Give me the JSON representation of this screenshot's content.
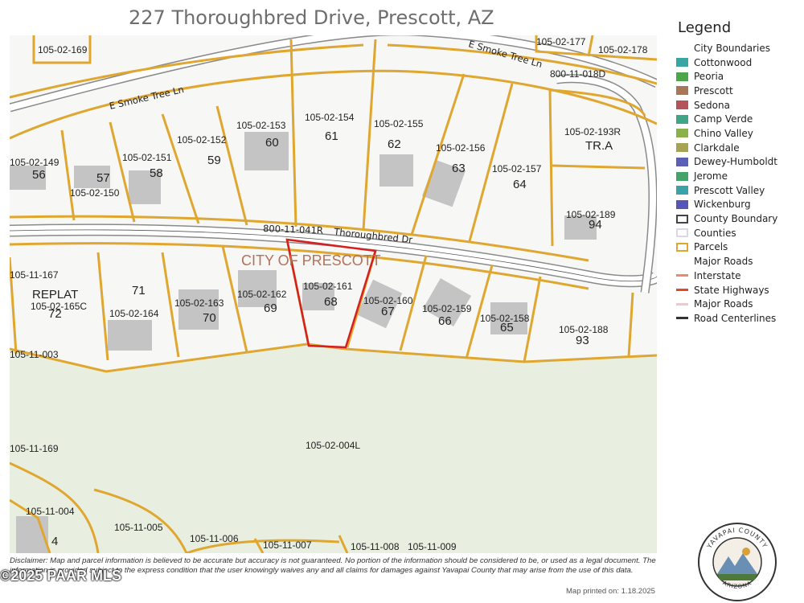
{
  "title": "227 Thoroughbred Drive, Prescott, AZ",
  "map": {
    "city_label": "CITY OF PRESCOTT",
    "roads": {
      "smoke_tree_left": "E Smoke Tree Ln",
      "smoke_tree_right": "E Smoke Tree Ln",
      "thoroughbred": "Thoroughbred Dr",
      "thoroughbred_id": "800-11-041R",
      "road_id_right": "800-11-018D"
    },
    "parcels": {
      "p169": "105-02-169",
      "p177": "105-02-177",
      "p178": "105-02-178",
      "p149": "105-02-149",
      "p150": "105-02-150",
      "p151": "105-02-151",
      "p152": "105-02-152",
      "p153": "105-02-153",
      "p154": "105-02-154",
      "p155": "105-02-155",
      "p156": "105-02-156",
      "p157": "105-02-157",
      "p193r": "105-02-193R",
      "p189": "105-02-189",
      "p11_167": "105-11-167",
      "p165c": "105-02-165C",
      "p164": "105-02-164",
      "p163": "105-02-163",
      "p162": "105-02-162",
      "p161": "105-02-161",
      "p160": "105-02-160",
      "p159": "105-02-159",
      "p158": "105-02-158",
      "p188": "105-02-188",
      "p11_003": "105-11-003",
      "p004l": "105-02-004L",
      "p11_169": "105-11-169",
      "p11_004": "105-11-004",
      "p11_005": "105-11-005",
      "p11_006": "105-11-006",
      "p11_007": "105-11-007",
      "p11_008": "105-11-008",
      "p11_009": "105-11-009"
    },
    "lots": {
      "l56": "56",
      "l57": "57",
      "l58": "58",
      "l59": "59",
      "l60": "60",
      "l61": "61",
      "l62": "62",
      "l63": "63",
      "l64": "64",
      "tra": "TR.A",
      "l94": "94",
      "replat": "REPLAT",
      "l72": "72",
      "l71": "71",
      "l70": "70",
      "l69": "69",
      "l68": "68",
      "l67": "67",
      "l66": "66",
      "l65": "65",
      "l93": "93",
      "l4": "4"
    },
    "selected_parcel": "105-02-161",
    "colors": {
      "parcel": "#e0a730",
      "selected": "#d42020",
      "green_area": "#e9efe0",
      "building": "#c4c4c4",
      "road_casing": "#8a8a8a"
    }
  },
  "legend": {
    "title": "Legend",
    "items": [
      {
        "label": "City Boundaries",
        "type": "none",
        "color": ""
      },
      {
        "label": "Cottonwood",
        "type": "fill",
        "color": "#3aa6a3"
      },
      {
        "label": "Peoria",
        "type": "fill",
        "color": "#4ea64a"
      },
      {
        "label": "Prescott",
        "type": "fill",
        "color": "#a8775a"
      },
      {
        "label": "Sedona",
        "type": "fill",
        "color": "#b5535a"
      },
      {
        "label": "Camp Verde",
        "type": "fill",
        "color": "#3ea587"
      },
      {
        "label": "Chino Valley",
        "type": "fill",
        "color": "#8cb14a"
      },
      {
        "label": "Clarkdale",
        "type": "fill",
        "color": "#a6a452"
      },
      {
        "label": "Dewey-Humboldt",
        "type": "fill",
        "color": "#5b5fb5"
      },
      {
        "label": "Jerome",
        "type": "fill",
        "color": "#44a36a"
      },
      {
        "label": "Prescott Valley",
        "type": "fill",
        "color": "#3aa3a8"
      },
      {
        "label": "Wickenburg",
        "type": "fill",
        "color": "#5556b8"
      },
      {
        "label": "County Boundary",
        "type": "outline",
        "color": "#444444"
      },
      {
        "label": "Counties",
        "type": "outline",
        "color": "#d8d8e8"
      },
      {
        "label": "Parcels",
        "type": "outline",
        "color": "#e0a730"
      },
      {
        "label": "Major Roads",
        "type": "none",
        "color": ""
      },
      {
        "label": "Interstate",
        "type": "line",
        "color": "#e98a6a"
      },
      {
        "label": "State Highways",
        "type": "line",
        "color": "#e8462a"
      },
      {
        "label": "Major Roads",
        "type": "line",
        "color": "#f0c8c8"
      },
      {
        "label": "Road Centerlines",
        "type": "line",
        "color": "#333333"
      }
    ]
  },
  "disclaimer": "Disclaimer: Map and parcel information is believed to be accurate but accuracy is not guaranteed. No portion of the information should be considered to be, or used as a legal document. The information is provided subject to the express condition that the user knowingly waives any and all claims for damages against Yavapai County that may arise from the use of this data.",
  "watermark": "©2025 PAAR MLS",
  "printed": "Map printed on: 1.18.2025",
  "seal_text": {
    "top": "YAVAPAI COUNTY",
    "bottom": "ARIZONA"
  }
}
